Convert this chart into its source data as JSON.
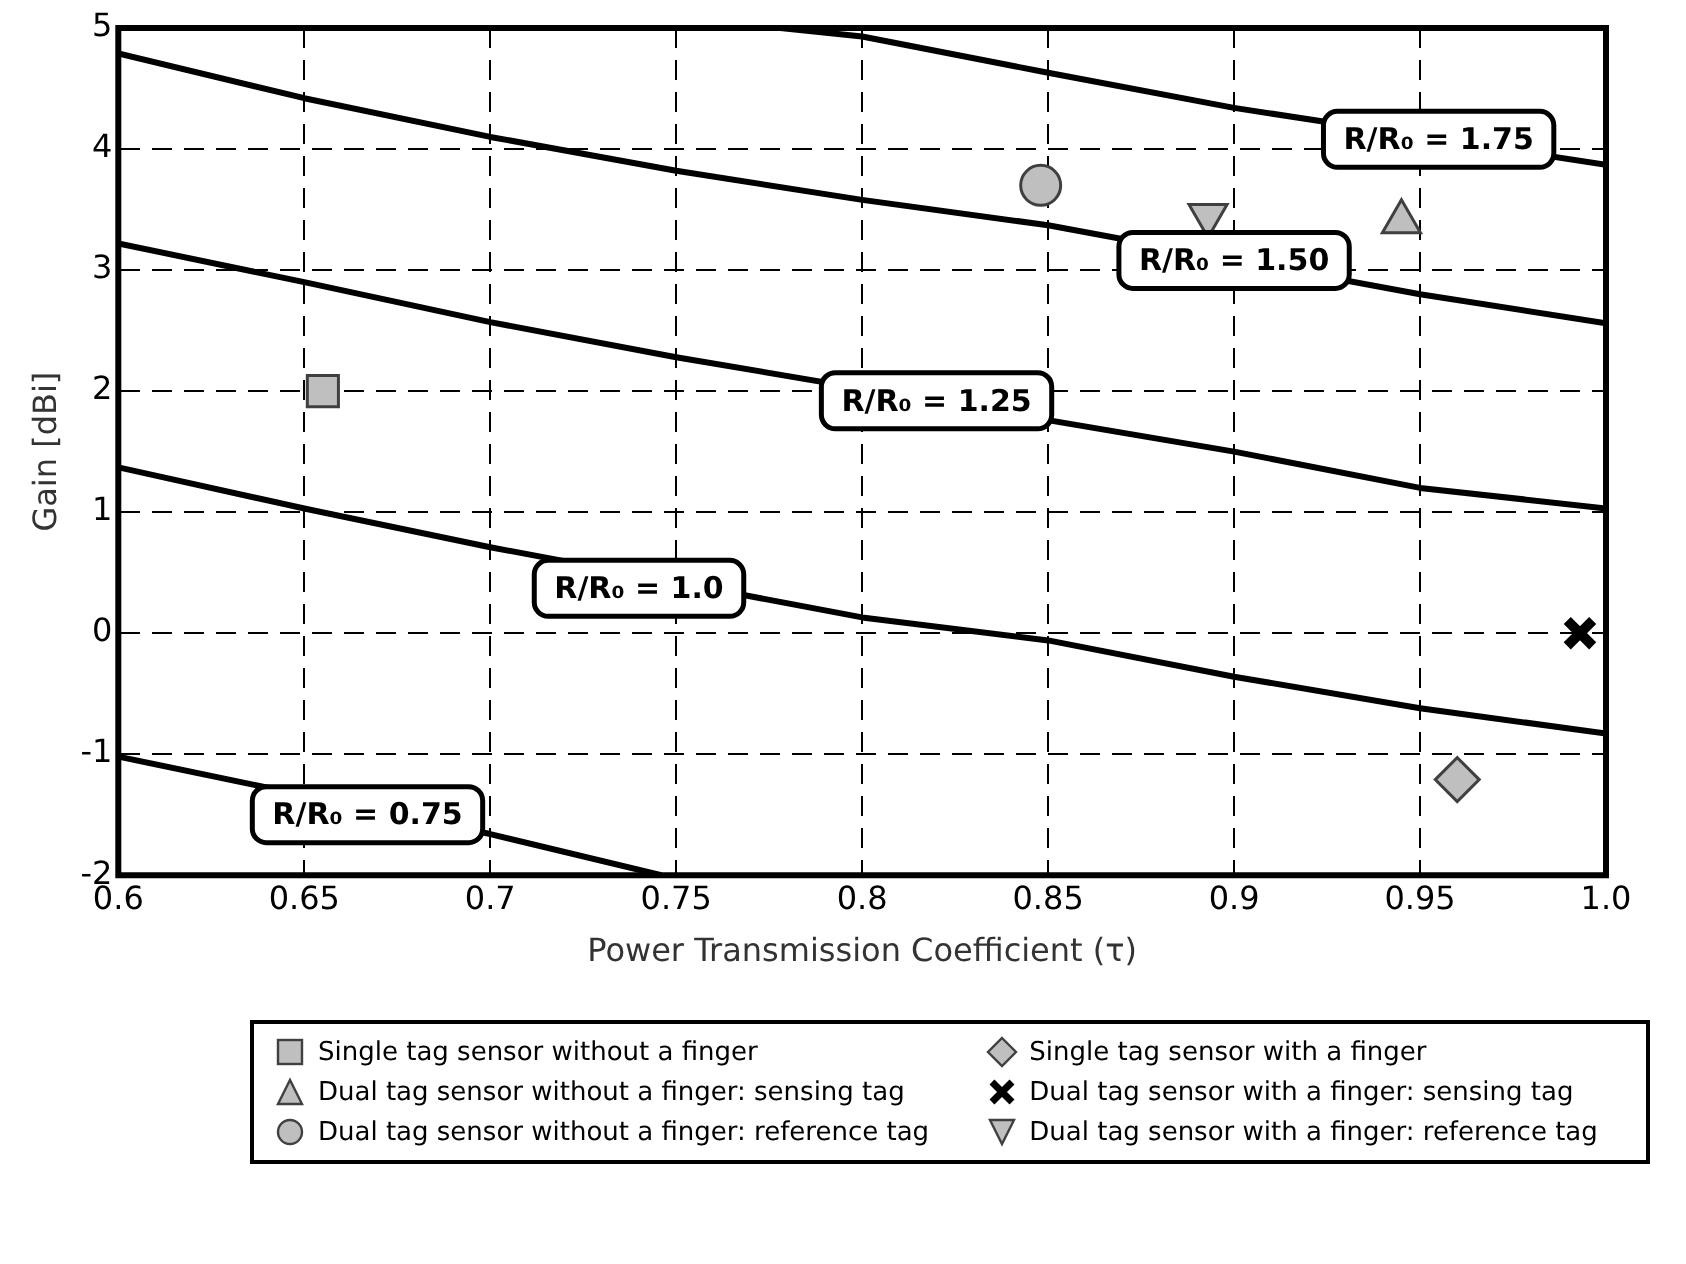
{
  "chart_data": {
    "type": "scatter",
    "xlabel": "Power Transmission Coefficient (τ)",
    "ylabel": "Gain [dBi]",
    "xlim": [
      0.6,
      1.0
    ],
    "xticks": [
      {
        "value": 0.6,
        "label": "0.6"
      },
      {
        "value": 0.65,
        "label": "0.65"
      },
      {
        "value": 0.7,
        "label": "0.7"
      },
      {
        "value": 0.75,
        "label": "0.75"
      },
      {
        "value": 0.8,
        "label": "0.8"
      },
      {
        "value": 0.85,
        "label": "0.85"
      },
      {
        "value": 0.9,
        "label": "0.9"
      },
      {
        "value": 0.95,
        "label": "0.95"
      },
      {
        "value": 1.0,
        "label": "1.0"
      }
    ],
    "ylim": [
      -2,
      5
    ],
    "yticks": [
      -2,
      -1,
      0,
      1,
      2,
      3,
      4,
      5
    ],
    "grid": true,
    "legend": "bottom",
    "series": [
      {
        "type": "line",
        "color": "#000000",
        "marker": "none",
        "x": [
          0.6,
          0.7,
          0.746
        ],
        "values": [
          -1.02,
          -1.66,
          -2
        ]
      },
      {
        "type": "line",
        "color": "#000000",
        "marker": "none",
        "x": [
          0.6,
          0.65,
          0.7,
          0.8,
          0.85,
          0.9,
          0.95,
          1.0
        ],
        "values": [
          1.37,
          1.03,
          0.71,
          0.13,
          -0.06,
          -0.36,
          -0.62,
          -0.83
        ]
      },
      {
        "type": "line",
        "color": "#000000",
        "marker": "none",
        "x": [
          0.6,
          0.65,
          0.7,
          0.75,
          0.9,
          0.95,
          1.0
        ],
        "values": [
          3.22,
          2.9,
          2.57,
          2.28,
          1.5,
          1.2,
          1.03
        ]
      },
      {
        "type": "line",
        "color": "#000000",
        "marker": "none",
        "x": [
          0.6,
          0.65,
          0.7,
          0.75,
          0.8,
          0.85,
          0.95,
          1.0
        ],
        "values": [
          4.79,
          4.42,
          4.1,
          3.82,
          3.58,
          3.37,
          2.8,
          2.56
        ]
      },
      {
        "type": "line",
        "color": "#000000",
        "marker": "none",
        "x": [
          0.778,
          0.8,
          0.85,
          0.9,
          1.0
        ],
        "values": [
          5,
          4.93,
          4.63,
          4.34,
          3.87
        ]
      },
      {
        "type": "scatter",
        "name": "Single tag sensor without a finger",
        "color": "#bfbfbf",
        "marker": "square",
        "x": [
          0.655
        ],
        "values": [
          2
        ]
      },
      {
        "type": "scatter",
        "name": "Single tag sensor with a finger",
        "color": "#bfbfbf",
        "marker": "diamond",
        "x": [
          0.96
        ],
        "values": [
          -1.21
        ]
      },
      {
        "type": "scatter",
        "name": "Dual tag sensor without a finger: sensing tag",
        "color": "#bfbfbf",
        "marker": "triangle",
        "x": [
          0.945
        ],
        "values": [
          3.4
        ]
      },
      {
        "type": "scatter",
        "name": "Dual tag sensor with a finger: sensing tag",
        "color": "#000000",
        "marker": "cross",
        "x": [
          0.993
        ],
        "values": [
          0
        ]
      },
      {
        "type": "scatter",
        "name": "Dual tag sensor without a finger: reference tag",
        "color": "#bfbfbf",
        "marker": "circle",
        "x": [
          0.848
        ],
        "values": [
          3.7
        ]
      },
      {
        "type": "scatter",
        "name": "Dual tag sensor with a finger: reference tag",
        "color": "#bfbfbf",
        "marker": "triangle-down",
        "x": [
          0.893
        ],
        "values": [
          3.45
        ]
      }
    ],
    "annotations": [
      {
        "text": "R/R₀ = 0.75",
        "x": 0.667,
        "y": -1.5
      },
      {
        "text": "R/R₀ = 1.0",
        "x": 0.74,
        "y": 0.37
      },
      {
        "text": "R/R₀ = 1.25",
        "x": 0.82,
        "y": 1.92
      },
      {
        "text": "R/R₀ = 1.50",
        "x": 0.9,
        "y": 3.08
      },
      {
        "text": "R/R₀ = 1.75",
        "x": 0.955,
        "y": 4.08
      }
    ]
  }
}
